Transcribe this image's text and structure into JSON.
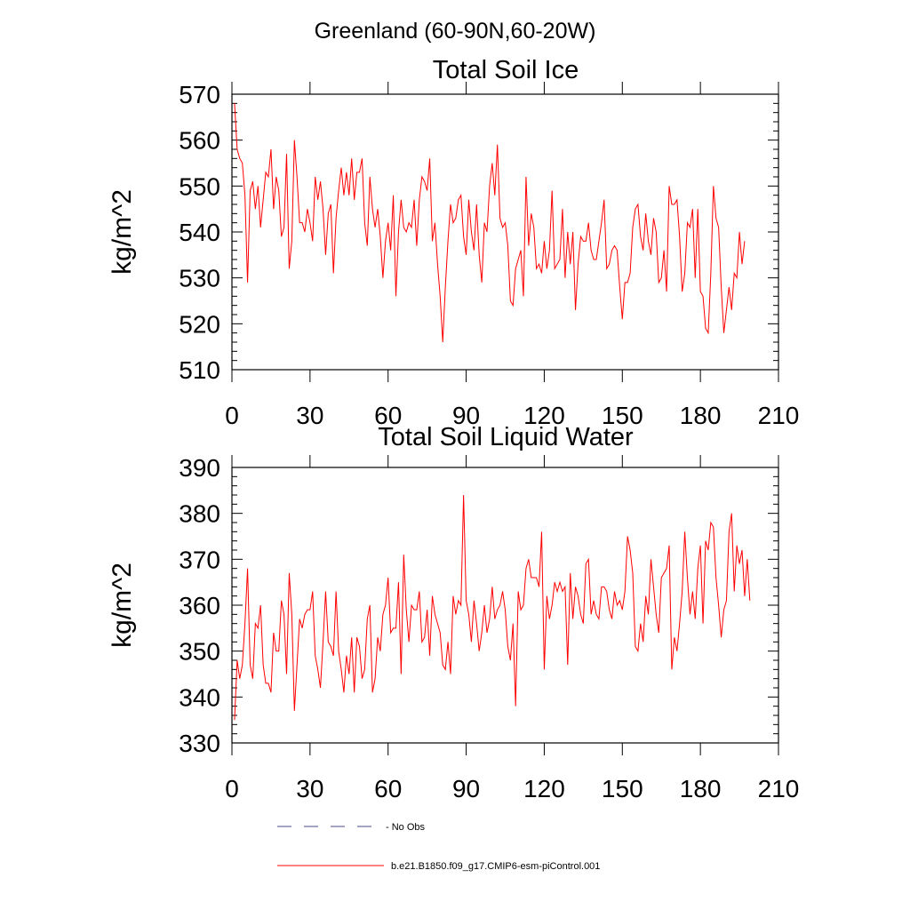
{
  "suptitle": "Greenland (60-90N,60-20W)",
  "colors": {
    "model_line": "#ff0000",
    "obs_line": "#4a4a8a",
    "axes": "#000000"
  },
  "legend": {
    "obs_label": "- No Obs",
    "model_label": "b.e21.B1850.f09_g17.CMIP6-esm-piControl.001",
    "obs_style": "dashed",
    "model_style": "solid"
  },
  "chart_data": [
    {
      "type": "line",
      "title": "Total Soil Ice",
      "xlabel": "",
      "ylabel": "kg/m^2",
      "xlim": [
        0,
        210
      ],
      "ylim": [
        510,
        570
      ],
      "xticks": [
        0,
        30,
        60,
        90,
        120,
        150,
        180,
        210
      ],
      "yticks": [
        510,
        520,
        530,
        540,
        550,
        560,
        570
      ],
      "x_start": 1,
      "series": [
        {
          "name": "b.e21.B1850.f09_g17.CMIP6-esm-piControl.001",
          "values": [
            568,
            558,
            556,
            555,
            548,
            529,
            549,
            551,
            545,
            550,
            541,
            547,
            553,
            552,
            558,
            545,
            552,
            549,
            539,
            541,
            557,
            532,
            538,
            560,
            552,
            542,
            542,
            540,
            545,
            542,
            538,
            552,
            547,
            551,
            545,
            535,
            544,
            546,
            531,
            543,
            549,
            554,
            548,
            553,
            548,
            556,
            547,
            553,
            553,
            556,
            542,
            537,
            552,
            545,
            541,
            545,
            539,
            530,
            538,
            542,
            536,
            548,
            526,
            540,
            547,
            541,
            540,
            542,
            541,
            547,
            537,
            547,
            552,
            551,
            549,
            556,
            538,
            542,
            533,
            526,
            516,
            528,
            538,
            546,
            542,
            543,
            547,
            548,
            539,
            535,
            547,
            540,
            536,
            546,
            535,
            529,
            542,
            540,
            550,
            555,
            548,
            559,
            543,
            541,
            542,
            537,
            525,
            524,
            532,
            534,
            536,
            526,
            552,
            537,
            544,
            541,
            532,
            533,
            531,
            538,
            532,
            536,
            549,
            532,
            533,
            534,
            545,
            530,
            540,
            533,
            540,
            523,
            533,
            539,
            538,
            538,
            542,
            536,
            534,
            534,
            538,
            542,
            547,
            532,
            533,
            536,
            537,
            536,
            528,
            521,
            529,
            529,
            531,
            541,
            545,
            546,
            539,
            536,
            544,
            538,
            535,
            543,
            540,
            529,
            530,
            536,
            527,
            550,
            546,
            546,
            547,
            539,
            527,
            531,
            542,
            541,
            545,
            530,
            545,
            527,
            526,
            519,
            518,
            531,
            550,
            543,
            541,
            528,
            518,
            523,
            528,
            523,
            531,
            530,
            540,
            533,
            538
          ]
        }
      ]
    },
    {
      "type": "line",
      "title": "Total Soil Liquid Water",
      "xlabel": "",
      "ylabel": "kg/m^2",
      "xlim": [
        0,
        210
      ],
      "ylim": [
        330,
        390
      ],
      "xticks": [
        0,
        30,
        60,
        90,
        120,
        150,
        180,
        210
      ],
      "yticks": [
        330,
        340,
        350,
        360,
        370,
        380,
        390
      ],
      "x_start": 1,
      "series": [
        {
          "name": "b.e21.B1850.f09_g17.CMIP6-esm-piControl.001",
          "values": [
            335,
            348,
            344,
            347,
            356,
            368,
            347,
            344,
            356,
            355,
            360,
            347,
            343,
            343,
            341,
            354,
            350,
            350,
            361,
            358,
            345,
            367,
            358,
            337,
            347,
            357,
            355,
            358,
            359,
            359,
            363,
            349,
            346,
            342,
            352,
            363,
            352,
            351,
            349,
            363,
            350,
            346,
            341,
            349,
            345,
            353,
            341,
            353,
            351,
            344,
            346,
            357,
            360,
            341,
            344,
            353,
            350,
            358,
            360,
            366,
            354,
            355,
            355,
            365,
            345,
            371,
            359,
            352,
            360,
            359,
            359,
            363,
            352,
            353,
            359,
            349,
            362,
            358,
            356,
            354,
            347,
            346,
            352,
            345,
            362,
            358,
            361,
            360,
            384,
            361,
            358,
            352,
            361,
            356,
            350,
            354,
            360,
            354,
            357,
            364,
            357,
            359,
            360,
            363,
            359,
            351,
            348,
            356,
            338,
            363,
            359,
            360,
            368,
            370,
            366,
            366,
            366,
            364,
            376,
            346,
            362,
            357,
            360,
            365,
            363,
            365,
            363,
            364,
            347,
            367,
            357,
            364,
            362,
            358,
            356,
            369,
            370,
            358,
            361,
            358,
            357,
            364,
            364,
            363,
            359,
            357,
            363,
            360,
            361,
            359,
            363,
            375,
            372,
            367,
            351,
            350,
            356,
            352,
            362,
            358,
            370,
            364,
            358,
            354,
            366,
            367,
            368,
            373,
            346,
            353,
            350,
            356,
            363,
            376,
            366,
            358,
            363,
            357,
            368,
            373,
            356,
            374,
            372,
            378,
            377,
            366,
            360,
            353,
            359,
            361,
            376,
            380,
            363,
            373,
            369,
            372,
            362,
            370,
            361
          ]
        }
      ]
    }
  ]
}
